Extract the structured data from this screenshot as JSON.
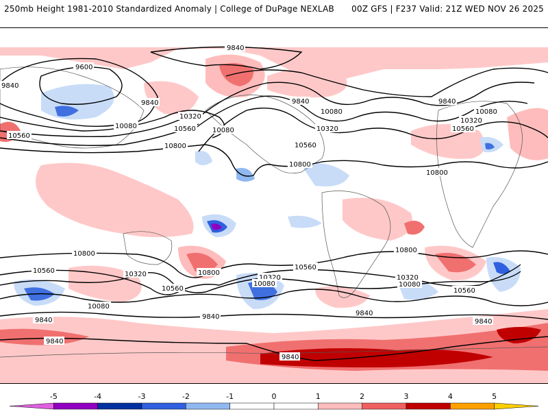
{
  "header": {
    "title": "250mb Height 1981-2010 Standardized Anomaly | College of DuPage NEXLAB",
    "run_info": "00Z GFS | F237 Valid: 21Z WED NOV 26 2025"
  },
  "map": {
    "variable": "250mb Height",
    "contour_labels": {
      "c9600": "9600",
      "c9840": "9840",
      "c10080": "10080",
      "c10320": "10320",
      "c10560": "10560",
      "c10800": "10800"
    }
  },
  "colorbar": {
    "ticks": [
      "-5",
      "-4",
      "-3",
      "-2",
      "-1",
      "0",
      "1",
      "2",
      "3",
      "4",
      "5"
    ],
    "colors": [
      "#e060e0",
      "#9000c0",
      "#0030a0",
      "#3060e0",
      "#90b8f0",
      "#ffffff",
      "#ffffff",
      "#ffbcbc",
      "#f06060",
      "#c00000",
      "#ffa000",
      "#ffd000"
    ]
  }
}
